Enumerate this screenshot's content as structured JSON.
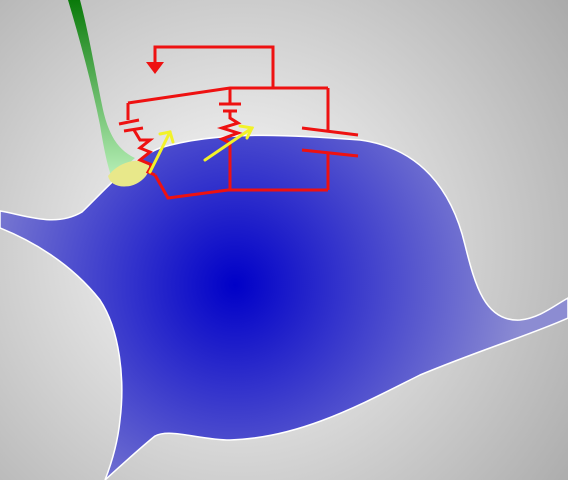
{
  "colors": {
    "background_center": "#ffffff",
    "background_edge": "#a9a9a9",
    "neuron_center": "#0000c8",
    "neuron_edge": "#8c8cd2",
    "neuron_outline": "#ffffff",
    "electrode_top": "#0a7a0a",
    "electrode_bottom": "#b8f0b8",
    "patch_contact": "#e8e88a",
    "circuit": "#ee1111",
    "arrow": "#f2f22a"
  },
  "components": {
    "ground": "ground-symbol",
    "resistor_1": "variable-resistor",
    "battery_1": "battery",
    "resistor_2": "variable-resistor",
    "battery_2": "battery",
    "capacitor": "capacitor"
  }
}
